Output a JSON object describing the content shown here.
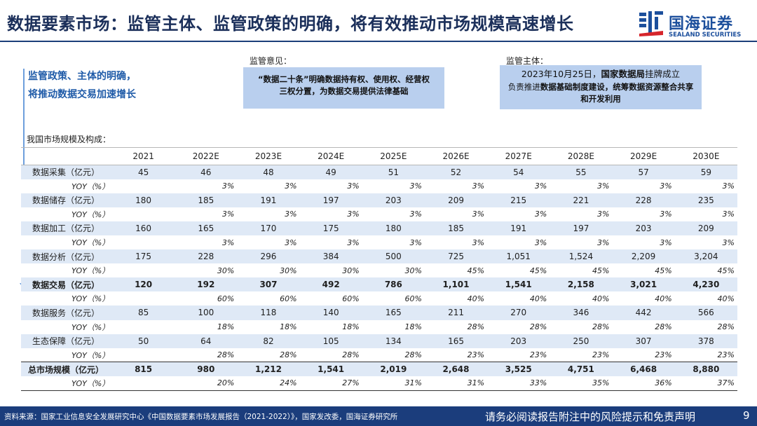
{
  "title": "数据要素市场：监管主体、监管政策的明确，将有效推动市场规模高速增长",
  "logo": {
    "cn": "国海证券",
    "en": "SEALAND SECURITIES",
    "mark_color": "#1c4f9c",
    "accent_color": "#d6252b"
  },
  "headline": {
    "line1": "监管政策、主体的明确，",
    "line2": "将推动数据交易加速增长"
  },
  "policy_box": {
    "label": "监管意见：",
    "text_bold": "“数据二十条”明确数据持有权、使用权、经营权三权分置，为数据交易提供法律基础"
  },
  "body_box": {
    "label": "监管主体：",
    "line1_prefix": "2023年10月25日，",
    "line1_bold": "国家数据局",
    "line1_suffix": "挂牌成立",
    "line2_prefix": "负责推进",
    "line2_bold": "数据基础制度建设，统筹数据资源整合共享和开发利用"
  },
  "table": {
    "caption": "我国市场规模及构成：",
    "years": [
      "2021",
      "2022E",
      "2023E",
      "2024E",
      "2025E",
      "2026E",
      "2027E",
      "2028E",
      "2029E",
      "2030E"
    ],
    "yoy_label": "YOY（%）",
    "rows": [
      {
        "name": "数据采集（亿元）",
        "values": [
          "45",
          "46",
          "48",
          "49",
          "51",
          "52",
          "54",
          "55",
          "57",
          "59"
        ],
        "yoy": [
          "",
          "3%",
          "3%",
          "3%",
          "3%",
          "3%",
          "3%",
          "3%",
          "3%",
          "3%"
        ]
      },
      {
        "name": "数据储存（亿元）",
        "values": [
          "180",
          "185",
          "191",
          "197",
          "203",
          "209",
          "215",
          "221",
          "228",
          "235"
        ],
        "yoy": [
          "",
          "3%",
          "3%",
          "3%",
          "3%",
          "3%",
          "3%",
          "3%",
          "3%",
          "3%"
        ]
      },
      {
        "name": "数据加工（亿元）",
        "values": [
          "160",
          "165",
          "170",
          "175",
          "180",
          "185",
          "191",
          "197",
          "203",
          "209"
        ],
        "yoy": [
          "",
          "3%",
          "3%",
          "3%",
          "3%",
          "3%",
          "3%",
          "3%",
          "3%",
          "3%"
        ]
      },
      {
        "name": "数据分析（亿元）",
        "values": [
          "175",
          "228",
          "296",
          "384",
          "500",
          "725",
          "1,051",
          "1,524",
          "2,209",
          "3,204"
        ],
        "yoy": [
          "",
          "30%",
          "30%",
          "30%",
          "30%",
          "45%",
          "45%",
          "45%",
          "45%",
          "45%"
        ]
      },
      {
        "name": "数据交易（亿元）",
        "bold": true,
        "values": [
          "120",
          "192",
          "307",
          "492",
          "786",
          "1,101",
          "1,541",
          "2,158",
          "3,021",
          "4,230"
        ],
        "yoy": [
          "",
          "60%",
          "60%",
          "60%",
          "60%",
          "40%",
          "40%",
          "40%",
          "40%",
          "40%"
        ]
      },
      {
        "name": "数据服务（亿元）",
        "values": [
          "85",
          "100",
          "118",
          "140",
          "165",
          "211",
          "270",
          "346",
          "442",
          "566"
        ],
        "yoy": [
          "",
          "18%",
          "18%",
          "18%",
          "18%",
          "28%",
          "28%",
          "28%",
          "28%",
          "28%"
        ]
      },
      {
        "name": "生态保障（亿元）",
        "values": [
          "50",
          "64",
          "82",
          "105",
          "134",
          "165",
          "203",
          "250",
          "307",
          "378"
        ],
        "yoy": [
          "",
          "28%",
          "28%",
          "28%",
          "28%",
          "23%",
          "23%",
          "23%",
          "23%",
          "23%"
        ]
      },
      {
        "name": "总市场规模（亿元）",
        "total": true,
        "values": [
          "815",
          "980",
          "1,212",
          "1,541",
          "2,019",
          "2,648",
          "3,525",
          "4,751",
          "6,468",
          "8,880"
        ],
        "yoy": [
          "",
          "20%",
          "24%",
          "27%",
          "31%",
          "31%",
          "33%",
          "35%",
          "36%",
          "37%"
        ]
      }
    ]
  },
  "footer": {
    "source": "资料来源：国家工业信息安全发展研究中心《中国数据要素市场发展报告（2021-2022）》，国家发改委，国海证券研究所",
    "disclaimer": "请务必阅读报告附注中的风险提示和免责声明",
    "page": "9"
  }
}
